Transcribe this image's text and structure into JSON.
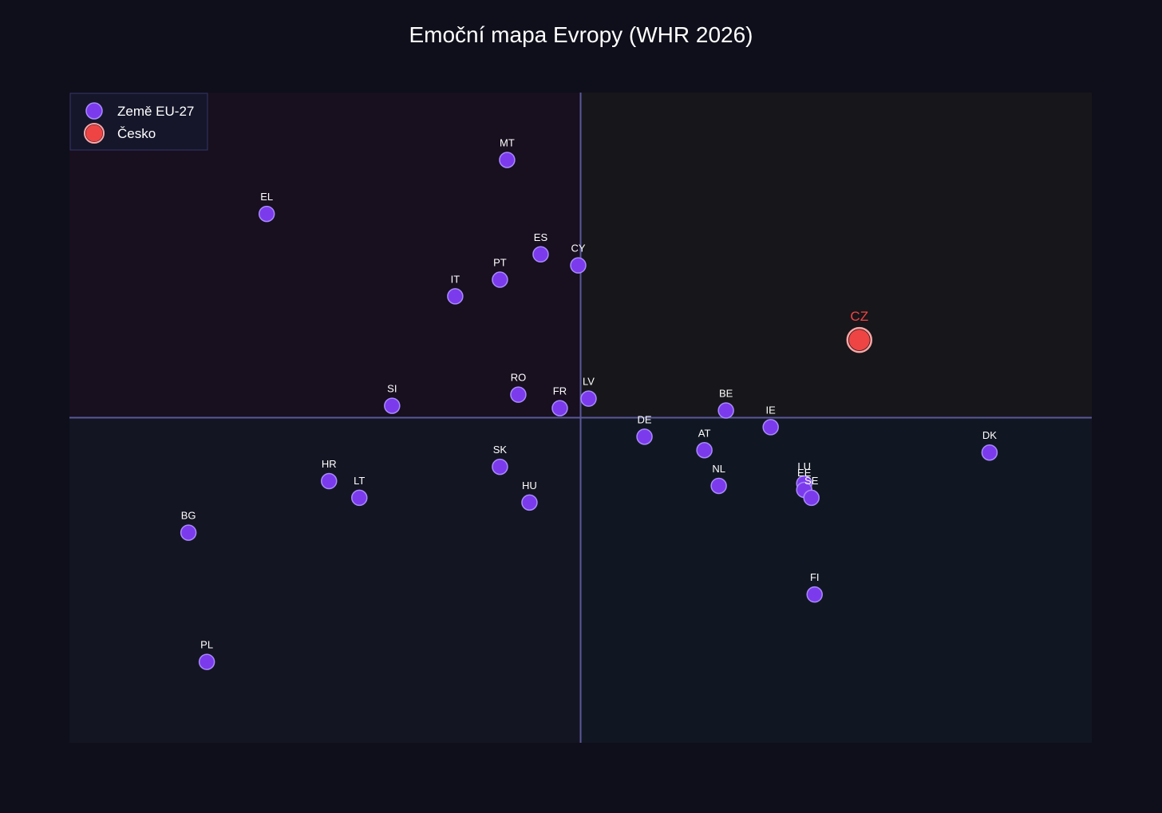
{
  "chart_data": {
    "type": "scatter",
    "title": "Emoční mapa Evropy (WHR 2026)",
    "xlabel": "",
    "ylabel": "",
    "xlim": [
      -64,
      64
    ],
    "ylim": [
      -41,
      41
    ],
    "grid": false,
    "quadrant_lines": true,
    "legend_position": "top-left",
    "series": [
      {
        "name": "Země EU-27",
        "color": "#7c3aed",
        "points": [
          {
            "label": "MT",
            "x": -9.2,
            "y": 32.5
          },
          {
            "label": "EL",
            "x": -39.3,
            "y": 25.7
          },
          {
            "label": "ES",
            "x": -5.0,
            "y": 20.6
          },
          {
            "label": "CY",
            "x": -0.3,
            "y": 19.2
          },
          {
            "label": "PT",
            "x": -10.1,
            "y": 17.4
          },
          {
            "label": "IT",
            "x": -15.7,
            "y": 15.3
          },
          {
            "label": "RO",
            "x": -7.8,
            "y": 2.9
          },
          {
            "label": "LV",
            "x": 1.0,
            "y": 2.4
          },
          {
            "label": "FR",
            "x": -2.6,
            "y": 1.2
          },
          {
            "label": "SI",
            "x": -23.6,
            "y": 1.5
          },
          {
            "label": "BE",
            "x": 18.2,
            "y": 0.9
          },
          {
            "label": "IE",
            "x": 23.8,
            "y": -1.2
          },
          {
            "label": "DE",
            "x": 8.0,
            "y": -2.4
          },
          {
            "label": "AT",
            "x": 15.5,
            "y": -4.1
          },
          {
            "label": "DK",
            "x": 51.2,
            "y": -4.4
          },
          {
            "label": "SK",
            "x": -10.1,
            "y": -6.2
          },
          {
            "label": "HR",
            "x": -31.5,
            "y": -8.0
          },
          {
            "label": "NL",
            "x": 17.3,
            "y": -8.6
          },
          {
            "label": "LU",
            "x": 28.0,
            "y": -8.3
          },
          {
            "label": "EE",
            "x": 28.0,
            "y": -9.1
          },
          {
            "label": "SE",
            "x": 28.9,
            "y": -10.1
          },
          {
            "label": "LT",
            "x": -27.7,
            "y": -10.1
          },
          {
            "label": "HU",
            "x": -6.4,
            "y": -10.7
          },
          {
            "label": "BG",
            "x": -49.1,
            "y": -14.5
          },
          {
            "label": "FI",
            "x": 29.3,
            "y": -22.3
          },
          {
            "label": "PL",
            "x": -46.8,
            "y": -30.8
          }
        ]
      },
      {
        "name": "Česko",
        "color": "#ef4444",
        "points": [
          {
            "label": "CZ",
            "x": 34.9,
            "y": 9.8
          }
        ]
      }
    ]
  },
  "colors": {
    "background": "#0e0f1a",
    "plot_q_top_left": "#180f1f",
    "plot_q_top_right": "#17161a",
    "plot_q_bottom_left": "#141522",
    "plot_q_bottom_right": "#111722",
    "axis_line": "#5a589a",
    "legend_bg": "#15162a",
    "legend_border": "#35356a",
    "text": "#ffffff"
  }
}
